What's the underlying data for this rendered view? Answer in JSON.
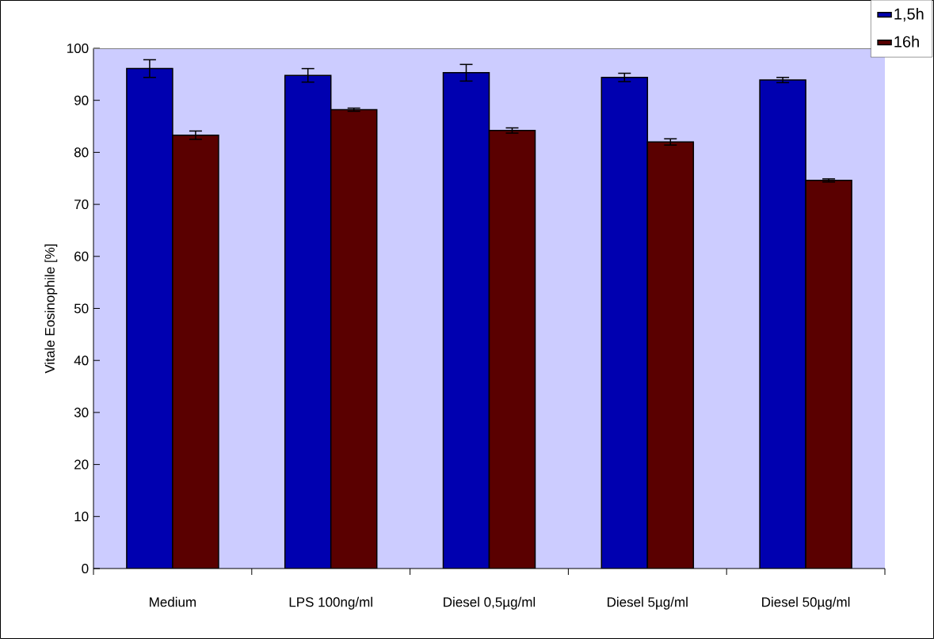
{
  "chart_data": {
    "type": "bar",
    "ylabel": "Vitale Eosinophile [%]",
    "categories": [
      "Medium",
      "LPS 100ng/ml",
      "Diesel 0,5µg/ml",
      "Diesel 5µg/ml",
      "Diesel 50µg/ml"
    ],
    "series": [
      {
        "name": "1,5h",
        "color": "#0000b0",
        "values": [
          96.1,
          94.8,
          95.3,
          94.4,
          93.9
        ],
        "errors": [
          1.7,
          1.3,
          1.6,
          0.8,
          0.5
        ]
      },
      {
        "name": "16h",
        "color": "#5a0000",
        "values": [
          83.3,
          88.2,
          84.2,
          82.0,
          74.6
        ],
        "errors": [
          0.8,
          0.3,
          0.5,
          0.6,
          0.3
        ]
      }
    ],
    "ylim": [
      0,
      100
    ],
    "yticks": [
      0,
      10,
      20,
      30,
      40,
      50,
      60,
      70,
      80,
      90,
      100
    ],
    "grid": false,
    "legend": "top right"
  }
}
